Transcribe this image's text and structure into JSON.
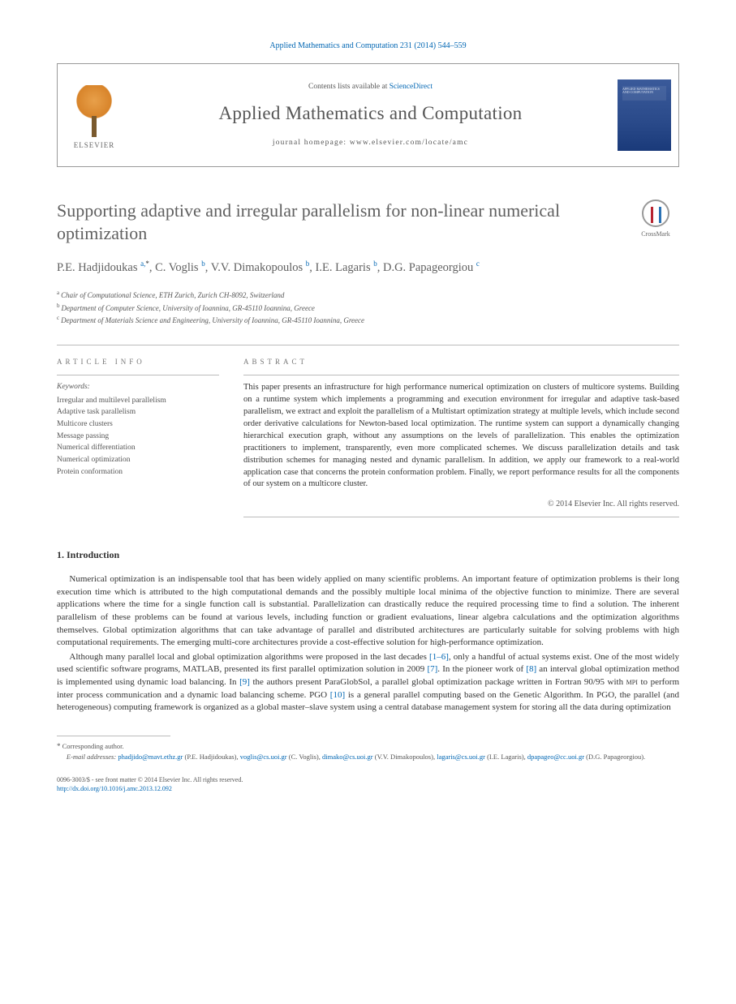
{
  "journal_citation": "Applied Mathematics and Computation 231 (2014) 544–559",
  "header": {
    "contents_prefix": "Contents lists available at ",
    "contents_link": "ScienceDirect",
    "journal_name": "Applied Mathematics and Computation",
    "homepage_prefix": "journal homepage: ",
    "homepage_url": "www.elsevier.com/locate/amc",
    "publisher_word": "ELSEVIER",
    "cover_text": "APPLIED MATHEMATICS AND COMPUTATION"
  },
  "crossmark_label": "CrossMark",
  "article": {
    "title": "Supporting adaptive and irregular parallelism for non-linear numerical optimization",
    "authors_html": "P.E. Hadjidoukas <sup>a,</sup><sup class=\"star\">*</sup>, C. Voglis <sup>b</sup>, V.V. Dimakopoulos <sup>b</sup>, I.E. Lagaris <sup>b</sup>, D.G. Papageorgiou <sup>c</sup>",
    "affiliations": [
      {
        "sup": "a",
        "text": "Chair of Computational Science, ETH Zurich, Zurich CH-8092, Switzerland"
      },
      {
        "sup": "b",
        "text": "Department of Computer Science, University of Ioannina, GR-45110 Ioannina, Greece"
      },
      {
        "sup": "c",
        "text": "Department of Materials Science and Engineering, University of Ioannina, GR-45110 Ioannina, Greece"
      }
    ]
  },
  "info": {
    "header": "ARTICLE INFO",
    "keywords_label": "Keywords:",
    "keywords": [
      "Irregular and multilevel parallelism",
      "Adaptive task parallelism",
      "Multicore clusters",
      "Message passing",
      "Numerical differentiation",
      "Numerical optimization",
      "Protein conformation"
    ]
  },
  "abstract": {
    "header": "ABSTRACT",
    "text": "This paper presents an infrastructure for high performance numerical optimization on clusters of multicore systems. Building on a runtime system which implements a programming and execution environment for irregular and adaptive task-based parallelism, we extract and exploit the parallelism of a Multistart optimization strategy at multiple levels, which include second order derivative calculations for Newton-based local optimization. The runtime system can support a dynamically changing hierarchical execution graph, without any assumptions on the levels of parallelization. This enables the optimization practitioners to implement, transparently, even more complicated schemes. We discuss parallelization details and task distribution schemes for managing nested and dynamic parallelism. In addition, we apply our framework to a real-world application case that concerns the protein conformation problem. Finally, we report performance results for all the components of our system on a multicore cluster.",
    "copyright": "© 2014 Elsevier Inc. All rights reserved."
  },
  "body": {
    "section1_title": "1. Introduction",
    "para1": "Numerical optimization is an indispensable tool that has been widely applied on many scientific problems. An important feature of optimization problems is their long execution time which is attributed to the high computational demands and the possibly multiple local minima of the objective function to minimize. There are several applications where the time for a single function call is substantial. Parallelization can drastically reduce the required processing time to find a solution. The inherent parallelism of these problems can be found at various levels, including function or gradient evaluations, linear algebra calculations and the optimization algorithms themselves. Global optimization algorithms that can take advantage of parallel and distributed architectures are particularly suitable for solving problems with high computational requirements. The emerging multi-core architectures provide a cost-effective solution for high-performance optimization.",
    "para2_pre": "Although many parallel local and global optimization algorithms were proposed in the last decades ",
    "ref_1_6": "[1–6]",
    "para2_a": ", only a handful of actual systems exist. One of the most widely used scientific software programs, MATLAB, presented its first parallel optimization solution in 2009 ",
    "ref_7": "[7]",
    "para2_b": ". In the pioneer work of ",
    "ref_8": "[8]",
    "para2_c": " an interval global optimization method is implemented using dynamic load balancing. In ",
    "ref_9": "[9]",
    "para2_d": " the authors present ParaGlobSol, a parallel global optimization package written in Fortran 90/95 with ",
    "mpi": "mpi",
    "para2_e": " to perform inter process communication and a dynamic load balancing scheme. PGO ",
    "ref_10": "[10]",
    "para2_f": " is a general parallel computing based on the Genetic Algorithm. In PGO, the parallel (and heterogeneous) computing framework is organized as a global master–slave system using a central database management system for storing all the data during optimization"
  },
  "footer": {
    "corresponding_marker": "*",
    "corresponding_label": "Corresponding author.",
    "email_label": "E-mail addresses:",
    "emails": [
      {
        "addr": "phadjido@mavt.ethz.gr",
        "who": "(P.E. Hadjidoukas)"
      },
      {
        "addr": "voglis@cs.uoi.gr",
        "who": "(C. Voglis)"
      },
      {
        "addr": "dimako@cs.uoi.gr",
        "who": "(V.V. Dimakopoulos)"
      },
      {
        "addr": "lagaris@cs.uoi.gr",
        "who": "(I.E. Lagaris)"
      },
      {
        "addr": "dpapageo@cc.uoi.gr",
        "who": "(D.G. Papageorgiou)."
      }
    ]
  },
  "bottom": {
    "line1": "0096-3003/$ - see front matter © 2014 Elsevier Inc. All rights reserved.",
    "doi": "http://dx.doi.org/10.1016/j.amc.2013.12.092"
  },
  "colors": {
    "link": "#0066b3",
    "text_grey": "#606060",
    "rule": "#bbbbbb"
  }
}
